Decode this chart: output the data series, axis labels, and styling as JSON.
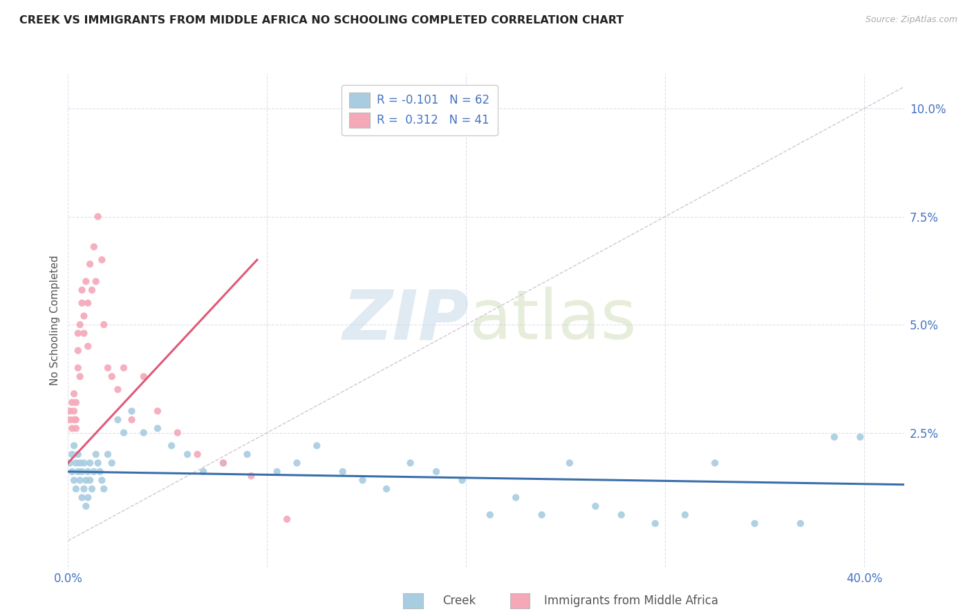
{
  "title": "CREEK VS IMMIGRANTS FROM MIDDLE AFRICA NO SCHOOLING COMPLETED CORRELATION CHART",
  "source": "Source: ZipAtlas.com",
  "ylabel": "No Schooling Completed",
  "ytick_values": [
    0.0,
    0.025,
    0.05,
    0.075,
    0.1
  ],
  "xlim": [
    0.0,
    0.42
  ],
  "ylim": [
    -0.006,
    0.108
  ],
  "legend_r_creek": "-0.101",
  "legend_n_creek": "62",
  "legend_r_africa": "0.312",
  "legend_n_africa": "41",
  "creek_color": "#a8cce0",
  "africa_color": "#f4a8b8",
  "creek_line_color": "#3a6eaa",
  "africa_line_color": "#e05878",
  "diagonal_color": "#c8b8c0",
  "background_color": "#ffffff",
  "grid_color": "#dde0ea",
  "title_color": "#222222",
  "source_color": "#aaaaaa",
  "axis_label_color": "#4472c4",
  "creek_x": [
    0.001,
    0.002,
    0.002,
    0.003,
    0.003,
    0.004,
    0.004,
    0.005,
    0.005,
    0.006,
    0.006,
    0.007,
    0.007,
    0.008,
    0.008,
    0.009,
    0.009,
    0.01,
    0.01,
    0.011,
    0.011,
    0.012,
    0.013,
    0.014,
    0.015,
    0.016,
    0.017,
    0.018,
    0.02,
    0.022,
    0.025,
    0.028,
    0.032,
    0.038,
    0.045,
    0.052,
    0.06,
    0.068,
    0.078,
    0.09,
    0.105,
    0.115,
    0.125,
    0.138,
    0.148,
    0.16,
    0.172,
    0.185,
    0.198,
    0.212,
    0.225,
    0.238,
    0.252,
    0.265,
    0.278,
    0.295,
    0.31,
    0.325,
    0.345,
    0.368,
    0.385,
    0.398
  ],
  "creek_y": [
    0.018,
    0.016,
    0.02,
    0.014,
    0.022,
    0.012,
    0.018,
    0.016,
    0.02,
    0.014,
    0.018,
    0.01,
    0.016,
    0.012,
    0.018,
    0.008,
    0.014,
    0.01,
    0.016,
    0.018,
    0.014,
    0.012,
    0.016,
    0.02,
    0.018,
    0.016,
    0.014,
    0.012,
    0.02,
    0.018,
    0.028,
    0.025,
    0.03,
    0.025,
    0.026,
    0.022,
    0.02,
    0.016,
    0.018,
    0.02,
    0.016,
    0.018,
    0.022,
    0.016,
    0.014,
    0.012,
    0.018,
    0.016,
    0.014,
    0.006,
    0.01,
    0.006,
    0.018,
    0.008,
    0.006,
    0.004,
    0.006,
    0.018,
    0.004,
    0.004,
    0.024,
    0.024
  ],
  "africa_x": [
    0.001,
    0.001,
    0.002,
    0.002,
    0.003,
    0.003,
    0.003,
    0.004,
    0.004,
    0.004,
    0.005,
    0.005,
    0.005,
    0.006,
    0.006,
    0.007,
    0.007,
    0.008,
    0.008,
    0.009,
    0.01,
    0.01,
    0.011,
    0.012,
    0.013,
    0.014,
    0.015,
    0.017,
    0.018,
    0.02,
    0.022,
    0.025,
    0.028,
    0.032,
    0.038,
    0.045,
    0.055,
    0.065,
    0.078,
    0.092,
    0.11
  ],
  "africa_y": [
    0.028,
    0.03,
    0.026,
    0.032,
    0.028,
    0.034,
    0.03,
    0.026,
    0.032,
    0.028,
    0.04,
    0.044,
    0.048,
    0.038,
    0.05,
    0.055,
    0.058,
    0.048,
    0.052,
    0.06,
    0.045,
    0.055,
    0.064,
    0.058,
    0.068,
    0.06,
    0.075,
    0.065,
    0.05,
    0.04,
    0.038,
    0.035,
    0.04,
    0.028,
    0.038,
    0.03,
    0.025,
    0.02,
    0.018,
    0.015,
    0.005
  ],
  "creek_line_x": [
    0.0,
    0.42
  ],
  "creek_line_y": [
    0.016,
    0.013
  ],
  "africa_line_x": [
    0.0,
    0.095
  ],
  "africa_line_y": [
    0.018,
    0.065
  ]
}
